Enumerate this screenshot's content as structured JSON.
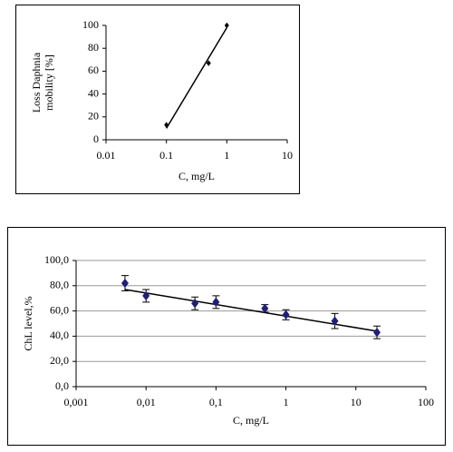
{
  "chart_data": [
    {
      "type": "scatter",
      "x_label": "C, mg/L",
      "y_label_lines": [
        "Loss Daphnia",
        "mobility [%]"
      ],
      "log_x": true,
      "xlim": [
        0.01,
        10
      ],
      "xticks": [
        0.01,
        0.1,
        1,
        10
      ],
      "ylim": [
        0,
        100
      ],
      "yticks": [
        0,
        20,
        40,
        60,
        80,
        100
      ],
      "grid": false,
      "series": [
        {
          "color": "#000000",
          "x": [
            0.1,
            0.5,
            1
          ],
          "values": [
            13,
            67,
            100
          ]
        }
      ],
      "trendline": {
        "color": "#000000",
        "x": [
          0.1,
          1
        ],
        "values": [
          10,
          98
        ]
      }
    },
    {
      "type": "scatter",
      "x_label": "C, mg/L",
      "y_label_lines": [
        "ChL level,%"
      ],
      "log_x": true,
      "xlim": [
        0.001,
        100
      ],
      "xticks": [
        {
          "value": 0.001,
          "label": "0,001"
        },
        {
          "value": 0.01,
          "label": "0,01"
        },
        {
          "value": 0.1,
          "label": "0,1"
        },
        1,
        10,
        100
      ],
      "ylim": [
        0,
        100
      ],
      "yticks": [
        {
          "value": 0,
          "label": "0,0"
        },
        {
          "value": 20,
          "label": "20,0"
        },
        {
          "value": 40,
          "label": "40,0"
        },
        {
          "value": 60,
          "label": "60,0"
        },
        {
          "value": 80,
          "label": "80,0"
        },
        {
          "value": 100,
          "label": "100,0"
        }
      ],
      "grid": true,
      "series": [
        {
          "color": "#1f1f7a",
          "x": [
            0.005,
            0.01,
            0.05,
            0.1,
            0.5,
            1,
            5,
            20
          ],
          "values": [
            82,
            72,
            66,
            67,
            62,
            57,
            52,
            43
          ],
          "errors": [
            6,
            5,
            5,
            5,
            3,
            4,
            6,
            5
          ]
        }
      ],
      "trendline": {
        "color": "#000000",
        "x": [
          0.005,
          20
        ],
        "values": [
          77,
          44
        ]
      }
    }
  ]
}
